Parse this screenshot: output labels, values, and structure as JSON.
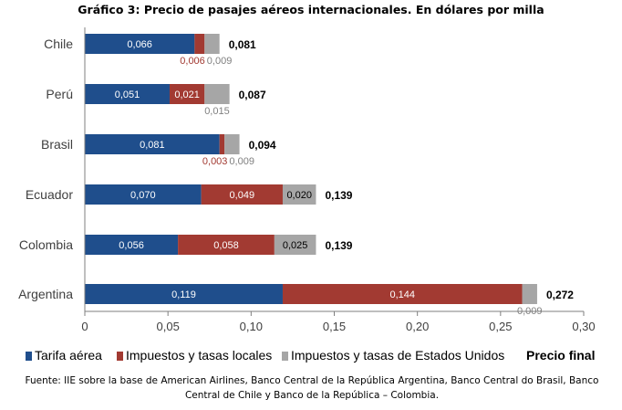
{
  "chart_data": {
    "type": "bar",
    "orientation": "horizontal",
    "stacked": true,
    "title": "Gráfico 3: Precio de pasajes aéreos internacionales. En dólares por milla",
    "categories": [
      "Chile",
      "Perú",
      "Brasil",
      "Ecuador",
      "Colombia",
      "Argentina"
    ],
    "series": [
      {
        "name": "Tarifa aérea",
        "color": "#1F4E8C",
        "values": [
          0.066,
          0.051,
          0.081,
          0.07,
          0.056,
          0.119
        ],
        "labels": [
          "0,066",
          "0,051",
          "0,081",
          "0,070",
          "0,056",
          "0,119"
        ]
      },
      {
        "name": "Impuestos y tasas locales",
        "color": "#A23A32",
        "values": [
          0.006,
          0.021,
          0.003,
          0.049,
          0.058,
          0.144
        ],
        "labels": [
          "0,006",
          "0,021",
          "0,003",
          "0,049",
          "0,058",
          "0,144"
        ]
      },
      {
        "name": "Impuestos y tasas de Estados Unidos",
        "color": "#A6A6A6",
        "values": [
          0.009,
          0.015,
          0.009,
          0.02,
          0.025,
          0.009
        ],
        "labels": [
          "0,009",
          "0,015",
          "0,009",
          "0,020",
          "0,025",
          "0,009"
        ]
      }
    ],
    "totals": {
      "name": "Precio final",
      "values": [
        0.081,
        0.087,
        0.094,
        0.139,
        0.139,
        0.272
      ],
      "labels": [
        "0,081",
        "0,087",
        "0,094",
        "0,139",
        "0,139",
        "0,272"
      ]
    },
    "xlim": [
      0,
      0.3
    ],
    "xticks": [
      0,
      0.05,
      0.1,
      0.15,
      0.2,
      0.25,
      0.3
    ],
    "xtick_labels": [
      "0",
      "0,05",
      "0,10",
      "0,15",
      "0,20",
      "0,25",
      "0,30"
    ],
    "grid": false,
    "legend_position": "bottom"
  },
  "legend": {
    "tarifa": "Tarifa aérea",
    "locales": "Impuestos y tasas locales",
    "eeuu": "Impuestos y tasas de Estados Unidos",
    "final": "Precio final"
  },
  "source": "Fuente: IIE sobre la base de American Airlines, Banco Central de la República Argentina, Banco Central do Brasil, Banco Central de Chile y Banco de la República – Colombia."
}
